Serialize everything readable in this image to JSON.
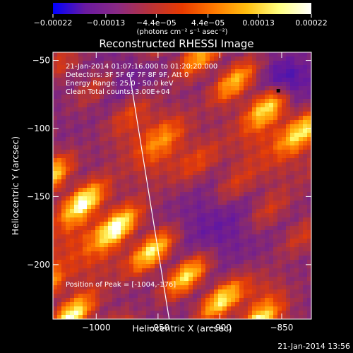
{
  "chart_data": {
    "type": "heatmap",
    "title": "Reconstructed RHESSI Image",
    "xlabel": "Heliocentric X (arcsec)",
    "ylabel": "Heliocentric Y (arcsec)",
    "xlim": [
      -1035,
      -826
    ],
    "ylim": [
      -240,
      -44
    ],
    "x_ticks": [
      -1000,
      -950,
      -900,
      -850
    ],
    "x_tick_labels": [
      "−1000",
      "−950",
      "−900",
      "−850"
    ],
    "y_ticks": [
      -50,
      -100,
      -150,
      -200
    ],
    "y_tick_labels": [
      "−50",
      "−100",
      "−150",
      "−200"
    ],
    "colorbar": {
      "range": [
        -0.00022,
        0.00022
      ],
      "ticks": [
        -0.00022,
        -0.00013,
        -4.4e-05,
        4.4e-05,
        0.00013,
        0.00022
      ],
      "tick_labels": [
        "−0.00022",
        "−0.00013",
        "−4.4e−05",
        "4.4e−05",
        "0.00013",
        "0.00022"
      ],
      "unit_label": "(photons cm⁻² s⁻¹ asec⁻²)",
      "colors": [
        "#0000ff",
        "#6a1aa0",
        "#8a2a84",
        "#b8323a",
        "#e83a00",
        "#ff7a00",
        "#ffbf10",
        "#ffff80",
        "#ffffff"
      ]
    },
    "annotations": [
      "21-Jan-2014 01:07:16.000 to 01:20:20.000",
      "Detectors: 3F 5F 6F 7F 8F 9F, Att 0",
      "Energy Range: 25.0 - 50.0 keV",
      "Clean    Total counts: 3.00E+04"
    ],
    "peak_label": "Position of Peak = [-1004,-176]",
    "peak_position": [
      -1004,
      -176
    ],
    "limb_line": [
      [
        -973,
        -60
      ],
      [
        -941,
        -240
      ]
    ],
    "grid": false
  },
  "footer": {
    "timestamp": "21-Jan-2014 13:56"
  }
}
